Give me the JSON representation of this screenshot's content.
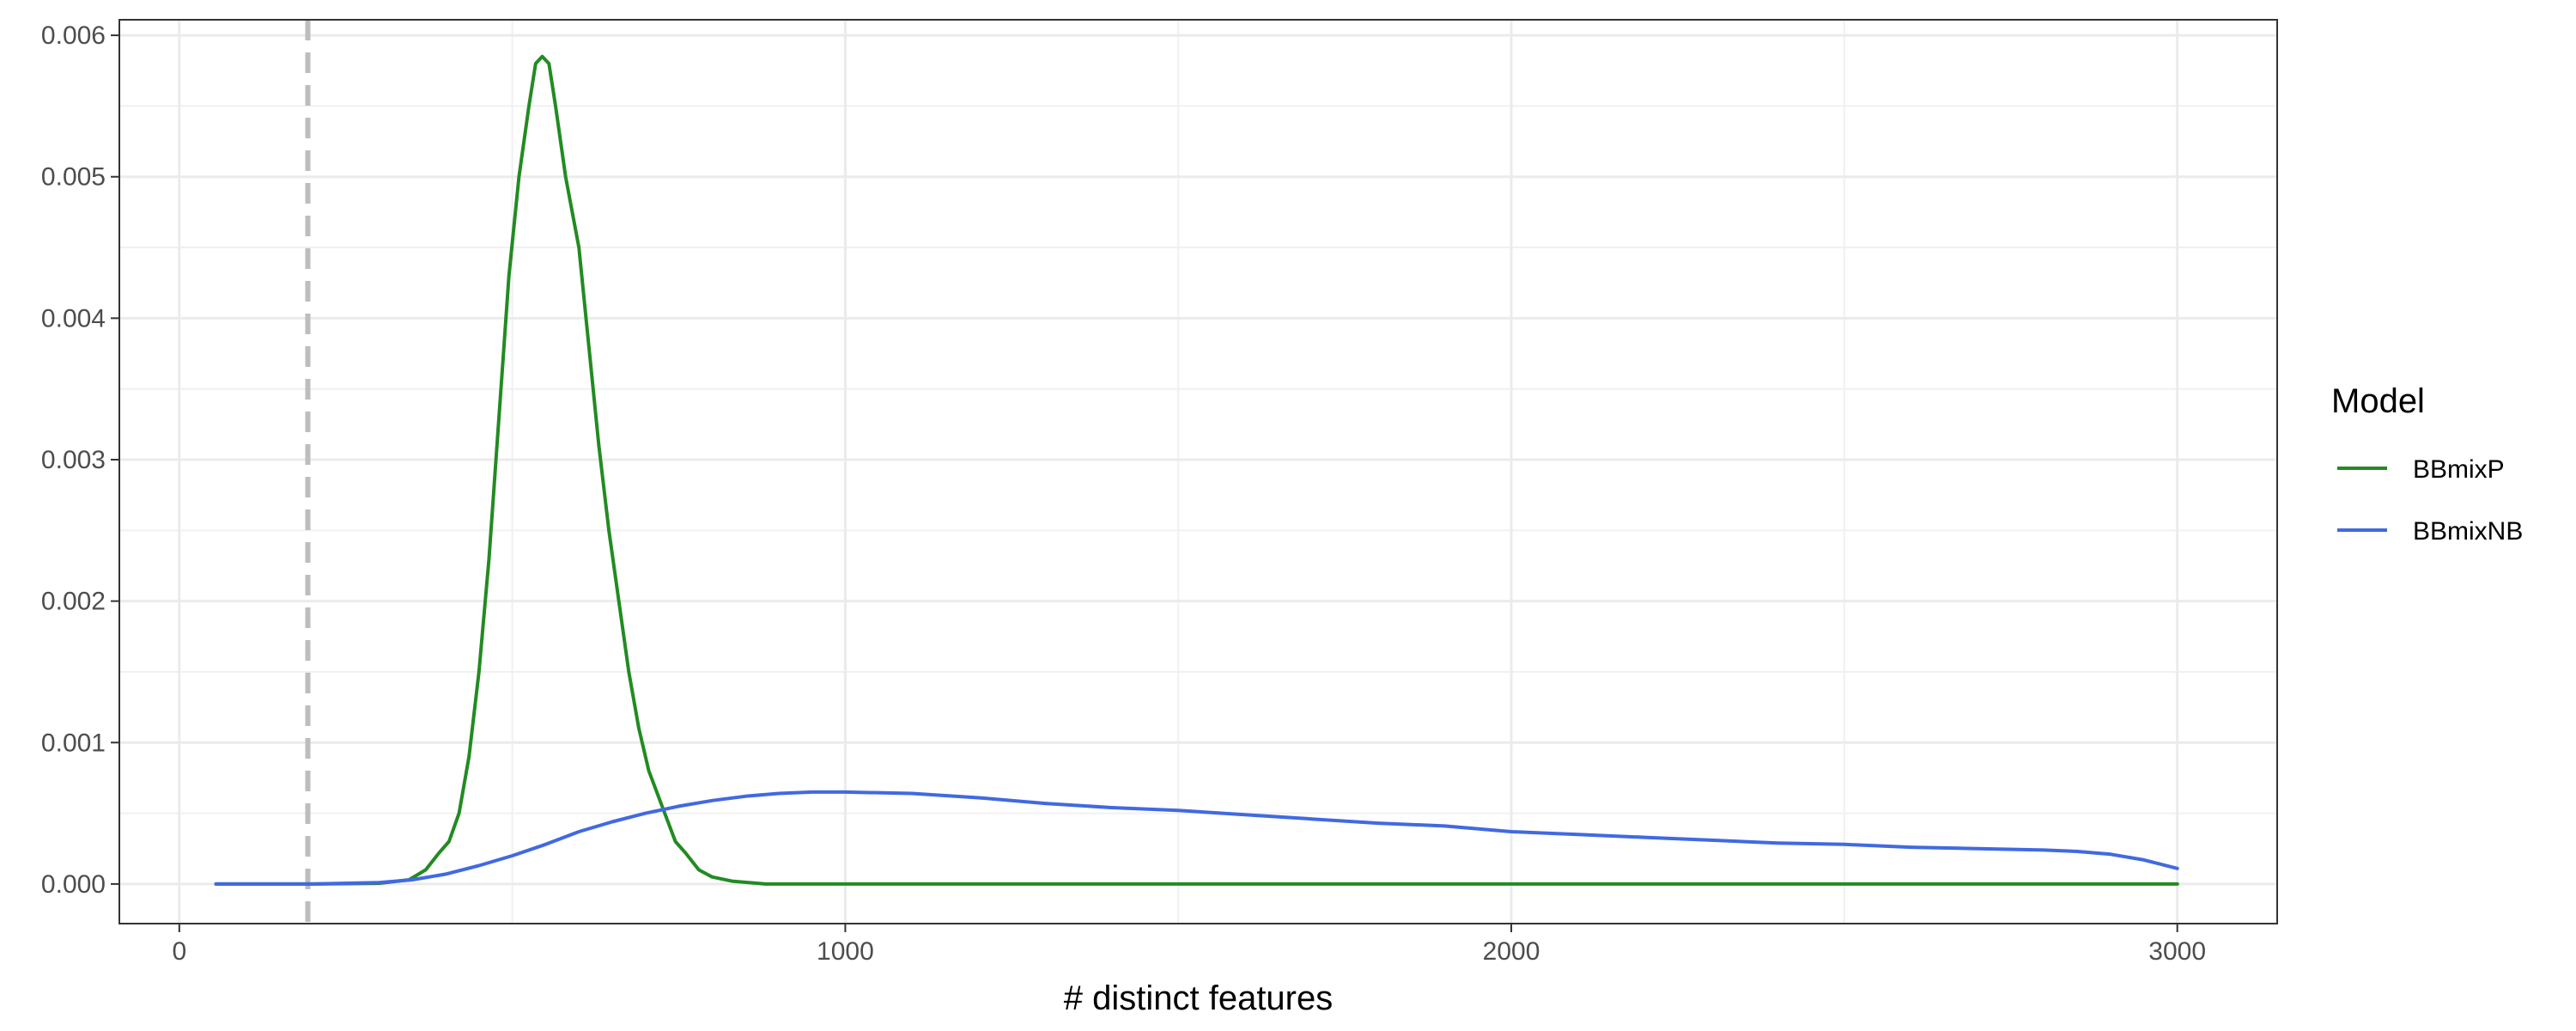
{
  "chart_data": {
    "type": "line",
    "title": "",
    "xlabel": "# distinct features",
    "ylabel": "",
    "xlim": [
      -90,
      3150
    ],
    "ylim": [
      -0.00028,
      0.00611
    ],
    "x_ticks": [
      0,
      1000,
      2000,
      3000
    ],
    "x_tick_labels": [
      "0",
      "1000",
      "2000",
      "3000"
    ],
    "y_ticks": [
      0.0,
      0.001,
      0.002,
      0.003,
      0.004,
      0.005,
      0.006
    ],
    "y_tick_labels": [
      "0.000",
      "0.001",
      "0.002",
      "0.003",
      "0.004",
      "0.005",
      "0.006"
    ],
    "grid": true,
    "reference_line": {
      "x": 193,
      "style": "dashed",
      "color": "#bdbdbd"
    },
    "legend": {
      "title": "Model",
      "position": "right"
    },
    "series": [
      {
        "name": "BBmixP",
        "color": "#228B22",
        "points": [
          [
            55,
            0
          ],
          [
            200,
            0
          ],
          [
            300,
            5e-06
          ],
          [
            345,
            3e-05
          ],
          [
            370,
            0.0001
          ],
          [
            390,
            0.00022
          ],
          [
            405,
            0.0003
          ],
          [
            420,
            0.0005
          ],
          [
            435,
            0.0009
          ],
          [
            450,
            0.0015
          ],
          [
            465,
            0.0023
          ],
          [
            480,
            0.0033
          ],
          [
            495,
            0.0043
          ],
          [
            510,
            0.005
          ],
          [
            525,
            0.0055
          ],
          [
            535,
            0.0058
          ],
          [
            545,
            0.00585
          ],
          [
            555,
            0.0058
          ],
          [
            565,
            0.0055
          ],
          [
            580,
            0.005
          ],
          [
            600,
            0.0045
          ],
          [
            615,
            0.0038
          ],
          [
            630,
            0.0031
          ],
          [
            645,
            0.0025
          ],
          [
            660,
            0.002
          ],
          [
            675,
            0.0015
          ],
          [
            690,
            0.0011
          ],
          [
            705,
            0.0008
          ],
          [
            725,
            0.00055
          ],
          [
            745,
            0.0003
          ],
          [
            760,
            0.00022
          ],
          [
            780,
            0.0001
          ],
          [
            800,
            5e-05
          ],
          [
            830,
            2e-05
          ],
          [
            880,
            0
          ],
          [
            1500,
            0
          ],
          [
            3000,
            0
          ]
        ]
      },
      {
        "name": "BBmixNB",
        "color": "#4169E1",
        "points": [
          [
            55,
            0
          ],
          [
            200,
            0
          ],
          [
            300,
            1e-05
          ],
          [
            350,
            3e-05
          ],
          [
            400,
            7e-05
          ],
          [
            450,
            0.00013
          ],
          [
            500,
            0.0002
          ],
          [
            550,
            0.00028
          ],
          [
            600,
            0.00037
          ],
          [
            650,
            0.00044
          ],
          [
            700,
            0.0005
          ],
          [
            750,
            0.00055
          ],
          [
            800,
            0.00059
          ],
          [
            850,
            0.00062
          ],
          [
            900,
            0.00064
          ],
          [
            950,
            0.00065
          ],
          [
            1000,
            0.00065
          ],
          [
            1100,
            0.00064
          ],
          [
            1200,
            0.00061
          ],
          [
            1300,
            0.00057
          ],
          [
            1400,
            0.00054
          ],
          [
            1500,
            0.00052
          ],
          [
            1600,
            0.00049
          ],
          [
            1700,
            0.00046
          ],
          [
            1800,
            0.00043
          ],
          [
            1900,
            0.00041
          ],
          [
            2000,
            0.00037
          ],
          [
            2100,
            0.00035
          ],
          [
            2200,
            0.00033
          ],
          [
            2300,
            0.00031
          ],
          [
            2400,
            0.00029
          ],
          [
            2500,
            0.00028
          ],
          [
            2600,
            0.00026
          ],
          [
            2700,
            0.00025
          ],
          [
            2800,
            0.00024
          ],
          [
            2850,
            0.00023
          ],
          [
            2900,
            0.00021
          ],
          [
            2950,
            0.00017
          ],
          [
            3000,
            0.00011
          ]
        ]
      }
    ]
  }
}
